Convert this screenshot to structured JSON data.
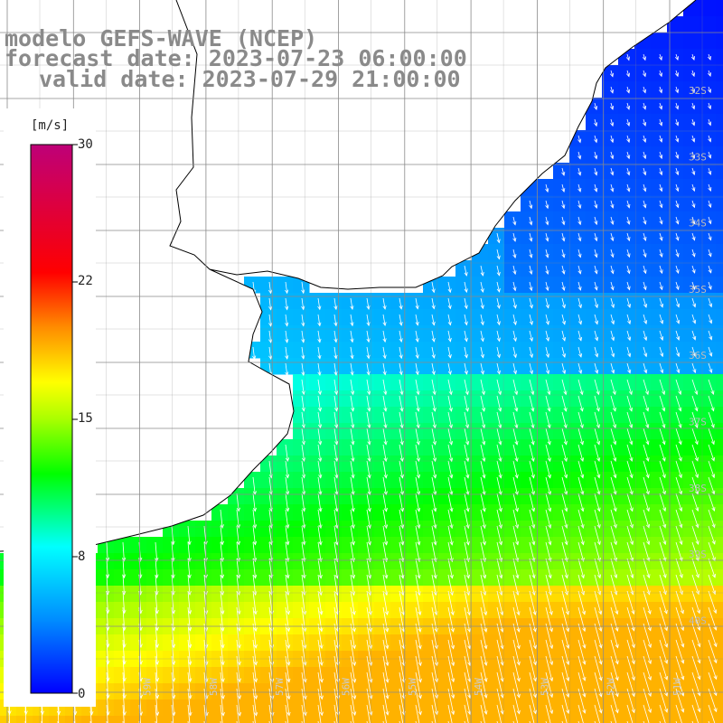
{
  "title": {
    "line1": "modelo GEFS-WAVE (NCEP)",
    "line2": "forecast date: 2023-07-23 06:00:00",
    "line3": "valid date: 2023-07-29 21:00:00"
  },
  "colorbar": {
    "unit": "[m/s]",
    "ticks": [
      "30",
      "22",
      "15",
      "8",
      "0"
    ],
    "tick_values": [
      30,
      22,
      15,
      8,
      0
    ],
    "colors": [
      "#0000ff",
      "#00c8ff",
      "#00ffff",
      "#00ff00",
      "#ffff00",
      "#ff7f00",
      "#ff0000",
      "#c0007a"
    ]
  },
  "map": {
    "variable": "wind speed",
    "lat_labels": [
      "32S",
      "33S",
      "34S",
      "35S",
      "36S",
      "37S",
      "38S",
      "39S",
      "40S"
    ],
    "lon_labels": [
      "61W",
      "60W",
      "59W",
      "58W",
      "57W",
      "56W",
      "55W",
      "54W",
      "53W",
      "52W",
      "51W"
    ],
    "ocean_color": "#4fa0ff",
    "land_color": "#ffffff",
    "arrow_color": "#ffffff"
  }
}
